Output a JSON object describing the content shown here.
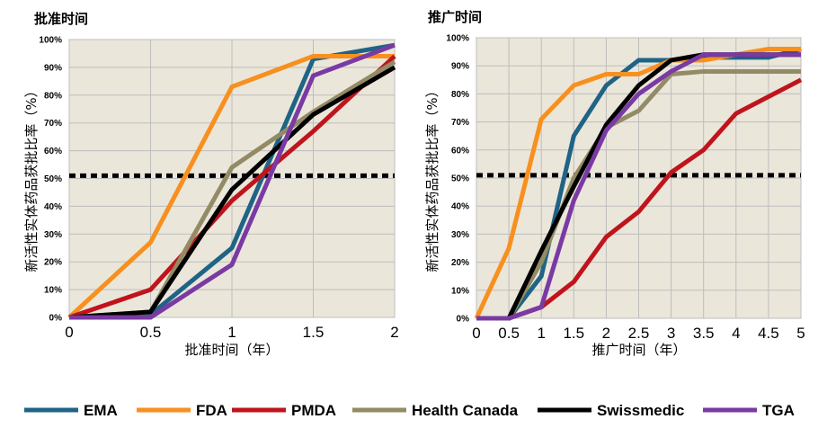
{
  "chart_data": [
    {
      "type": "line",
      "title": "批准时间",
      "xlabel": "批准时间（年）",
      "ylabel": "新活性实体药品获批比率（%）",
      "xlim": [
        0,
        2
      ],
      "ylim": [
        0,
        100
      ],
      "x_ticks": [
        "0",
        "0.5",
        "1",
        "1.5",
        "2"
      ],
      "y_ticks": [
        "0%",
        "10%",
        "20%",
        "30%",
        "40%",
        "50%",
        "60%",
        "70%",
        "80%",
        "90%",
        "100%"
      ],
      "reference_line": 51,
      "grid": true,
      "x": [
        0,
        0.5,
        1,
        1.5,
        2
      ],
      "series": [
        {
          "name": "EMA",
          "values": [
            0,
            1,
            25,
            93,
            98
          ]
        },
        {
          "name": "FDA",
          "values": [
            0,
            27,
            83,
            94,
            94
          ]
        },
        {
          "name": "PMDA",
          "values": [
            0,
            10,
            42,
            67,
            94
          ]
        },
        {
          "name": "Health Canada",
          "values": [
            0,
            2,
            54,
            74,
            92
          ]
        },
        {
          "name": "Swissmedic",
          "values": [
            0,
            2,
            46,
            73,
            90
          ]
        },
        {
          "name": "TGA",
          "values": [
            0,
            0,
            19,
            87,
            98
          ]
        }
      ]
    },
    {
      "type": "line",
      "title": "推广时间",
      "xlabel": "推广时间（年）",
      "ylabel": "新活性实体药品获批比率（%）",
      "xlim": [
        0,
        5
      ],
      "ylim": [
        0,
        100
      ],
      "x_ticks": [
        "0",
        "0.5",
        "1",
        "1.5",
        "2",
        "2.5",
        "3",
        "3.5",
        "4",
        "4.5",
        "5"
      ],
      "y_ticks": [
        "0%",
        "10%",
        "20%",
        "30%",
        "40%",
        "50%",
        "60%",
        "70%",
        "80%",
        "90%",
        "100%"
      ],
      "reference_line": 51,
      "grid": true,
      "x": [
        0,
        0.5,
        1,
        1.5,
        2,
        2.5,
        3,
        3.5,
        4,
        4.5,
        5
      ],
      "series": [
        {
          "name": "EMA",
          "values": [
            0,
            0,
            15,
            65,
            83,
            92,
            92,
            93,
            93,
            93,
            96
          ]
        },
        {
          "name": "FDA",
          "values": [
            0,
            25,
            71,
            83,
            87,
            87,
            92,
            92,
            94,
            96,
            96
          ]
        },
        {
          "name": "PMDA",
          "values": [
            0,
            0,
            4,
            13,
            29,
            38,
            52,
            60,
            73,
            79,
            85
          ]
        },
        {
          "name": "Health Canada",
          "values": [
            0,
            0,
            20,
            50,
            68,
            74,
            87,
            88,
            88,
            88,
            88
          ]
        },
        {
          "name": "Swissmedic",
          "values": [
            0,
            0,
            24,
            47,
            69,
            83,
            92,
            94,
            94,
            94,
            94
          ]
        },
        {
          "name": "TGA",
          "values": [
            0,
            0,
            4,
            42,
            67,
            80,
            88,
            94,
            94,
            94,
            94
          ]
        }
      ]
    }
  ],
  "legend": [
    {
      "label": "EMA",
      "color": "#1f6485"
    },
    {
      "label": "FDA",
      "color": "#f7901e"
    },
    {
      "label": "PMDA",
      "color": "#c0141c"
    },
    {
      "label": "Health Canada",
      "color": "#938b65"
    },
    {
      "label": "Swissmedic",
      "color": "#000000"
    },
    {
      "label": "TGA",
      "color": "#7a3aa3"
    }
  ]
}
